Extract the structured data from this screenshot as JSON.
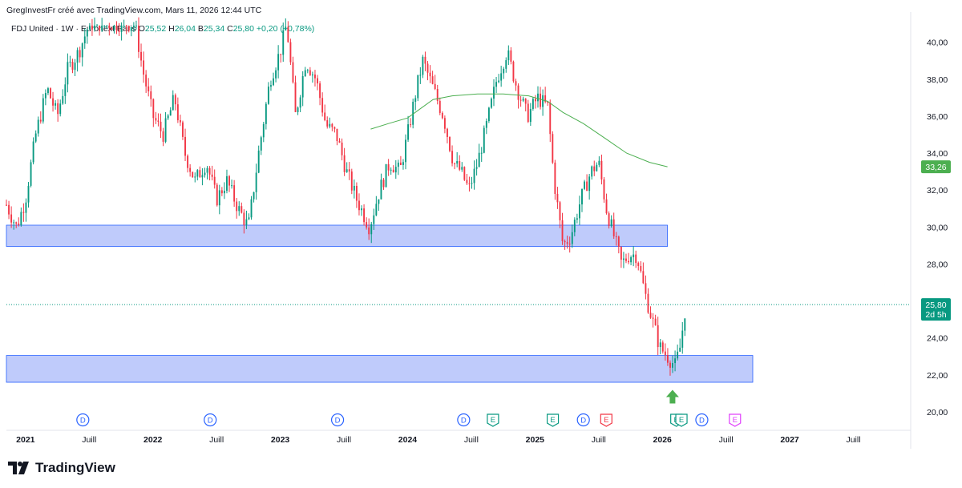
{
  "header": {
    "attribution": "GregInvestFr créé avec TradingView.com, Mars 11, 2026 12:44 UTC"
  },
  "legend": {
    "symbol": "FDJ United · 1W · Euronext Paris",
    "open_label": "O",
    "open": "25,52",
    "high_label": "H",
    "high": "26,04",
    "low_label": "B",
    "low": "25,34",
    "close_label": "C",
    "close": "25,80",
    "change": "+0,20 (+0,78%)"
  },
  "footer": {
    "brand": "TradingView"
  },
  "colors": {
    "up": "#089981",
    "down": "#f23645",
    "ma": "#4caf50",
    "zone_fill": "#bcc8fb",
    "zone_border": "#2962ff",
    "axis_text": "#131722"
  },
  "chart_data": {
    "type": "candlestick",
    "title": "FDJ United · 1W · Euronext Paris",
    "ylim": [
      19.0,
      41.2
    ],
    "xlim": [
      2020.85,
      2027.95
    ],
    "y_ticks": [
      "20,00",
      "22,00",
      "24,00",
      "26,00",
      "28,00",
      "30,00",
      "32,00",
      "34,00",
      "36,00",
      "38,00",
      "40,00"
    ],
    "x_ticks": [
      {
        "label": "2021",
        "x": 2021.0
      },
      {
        "label": "Juill",
        "x": 2021.5
      },
      {
        "label": "2022",
        "x": 2022.0
      },
      {
        "label": "Juill",
        "x": 2022.5
      },
      {
        "label": "2023",
        "x": 2023.0
      },
      {
        "label": "Juill",
        "x": 2023.5
      },
      {
        "label": "2024",
        "x": 2024.0
      },
      {
        "label": "Juill",
        "x": 2024.5
      },
      {
        "label": "2025",
        "x": 2025.0
      },
      {
        "label": "Juill",
        "x": 2025.5
      },
      {
        "label": "2026",
        "x": 2026.0
      },
      {
        "label": "Juill",
        "x": 2026.5
      },
      {
        "label": "2027",
        "x": 2027.0
      },
      {
        "label": "Juill",
        "x": 2027.5
      }
    ],
    "price_path": [
      [
        2020.85,
        31.2
      ],
      [
        2020.93,
        30.0
      ],
      [
        2021.0,
        31.5
      ],
      [
        2021.08,
        35.0
      ],
      [
        2021.17,
        37.5
      ],
      [
        2021.25,
        36.0
      ],
      [
        2021.33,
        38.5
      ],
      [
        2021.42,
        39.5
      ],
      [
        2021.5,
        41.0
      ],
      [
        2021.86,
        41.0
      ],
      [
        2021.92,
        38.5
      ],
      [
        2022.0,
        36.0
      ],
      [
        2022.08,
        35.0
      ],
      [
        2022.17,
        37.0
      ],
      [
        2022.25,
        34.0
      ],
      [
        2022.33,
        32.5
      ],
      [
        2022.42,
        33.5
      ],
      [
        2022.5,
        31.5
      ],
      [
        2022.58,
        32.5
      ],
      [
        2022.67,
        31.0
      ],
      [
        2022.75,
        30.0
      ],
      [
        2022.83,
        34.0
      ],
      [
        2022.92,
        38.0
      ],
      [
        2023.0,
        39.5
      ],
      [
        2023.05,
        41.0
      ],
      [
        2023.12,
        36.0
      ],
      [
        2023.2,
        39.0
      ],
      [
        2023.28,
        38.0
      ],
      [
        2023.36,
        35.5
      ],
      [
        2023.44,
        35.0
      ],
      [
        2023.52,
        33.0
      ],
      [
        2023.6,
        31.5
      ],
      [
        2023.7,
        30.0
      ],
      [
        2023.78,
        32.0
      ],
      [
        2023.86,
        33.5
      ],
      [
        2023.94,
        33.0
      ],
      [
        2024.0,
        35.0
      ],
      [
        2024.07,
        37.5
      ],
      [
        2024.12,
        39.0
      ],
      [
        2024.2,
        37.5
      ],
      [
        2024.28,
        36.0
      ],
      [
        2024.36,
        33.5
      ],
      [
        2024.42,
        33.0
      ],
      [
        2024.48,
        32.0
      ],
      [
        2024.55,
        33.5
      ],
      [
        2024.62,
        35.5
      ],
      [
        2024.7,
        38.0
      ],
      [
        2024.78,
        39.5
      ],
      [
        2024.86,
        37.5
      ],
      [
        2024.94,
        36.0
      ],
      [
        2025.02,
        37.0
      ],
      [
        2025.1,
        36.5
      ],
      [
        2025.15,
        32.5
      ],
      [
        2025.22,
        29.0
      ],
      [
        2025.28,
        29.5
      ],
      [
        2025.36,
        31.5
      ],
      [
        2025.44,
        33.0
      ],
      [
        2025.5,
        33.5
      ],
      [
        2025.56,
        31.0
      ],
      [
        2025.62,
        29.5
      ],
      [
        2025.68,
        28.0
      ],
      [
        2025.74,
        28.5
      ],
      [
        2025.8,
        28.5
      ],
      [
        2025.86,
        26.5
      ],
      [
        2025.92,
        25.0
      ],
      [
        2025.98,
        23.5
      ],
      [
        2026.04,
        23.0
      ],
      [
        2026.1,
        22.5
      ],
      [
        2026.14,
        23.5
      ],
      [
        2026.18,
        25.6
      ],
      [
        2026.19,
        25.8
      ]
    ],
    "moving_average": [
      [
        2023.71,
        35.3
      ],
      [
        2023.85,
        35.6
      ],
      [
        2024.0,
        35.9
      ],
      [
        2024.1,
        36.4
      ],
      [
        2024.2,
        36.9
      ],
      [
        2024.35,
        37.1
      ],
      [
        2024.55,
        37.2
      ],
      [
        2024.75,
        37.2
      ],
      [
        2024.95,
        37.1
      ],
      [
        2025.1,
        36.8
      ],
      [
        2025.22,
        36.2
      ],
      [
        2025.38,
        35.6
      ],
      [
        2025.55,
        34.8
      ],
      [
        2025.72,
        34.0
      ],
      [
        2025.9,
        33.5
      ],
      [
        2026.04,
        33.26
      ]
    ],
    "zones": [
      {
        "x0": 2020.85,
        "x1": 2026.04,
        "y0": 28.95,
        "y1": 30.1
      },
      {
        "x0": 2020.85,
        "x1": 2026.71,
        "y0": 21.6,
        "y1": 23.05
      }
    ],
    "last_price": {
      "value": 25.8,
      "label": "25,80",
      "countdown": "2d 5h"
    },
    "ma_label": {
      "value": 33.26,
      "label": "33,26"
    },
    "arrow": {
      "x": 2026.08,
      "y": 20.8
    },
    "events": [
      {
        "type": "D",
        "x": 2021.45
      },
      {
        "type": "D",
        "x": 2022.45
      },
      {
        "type": "D",
        "x": 2023.45
      },
      {
        "type": "D",
        "x": 2024.44
      },
      {
        "type": "E",
        "x": 2024.67
      },
      {
        "type": "E",
        "x": 2025.14
      },
      {
        "type": "D",
        "x": 2025.38
      },
      {
        "type": "E",
        "x": 2025.56
      },
      {
        "type": "E",
        "x": 2026.11
      },
      {
        "type": "E",
        "x": 2026.15
      },
      {
        "type": "D",
        "x": 2026.31
      },
      {
        "type": "E",
        "x": 2026.57
      }
    ]
  }
}
